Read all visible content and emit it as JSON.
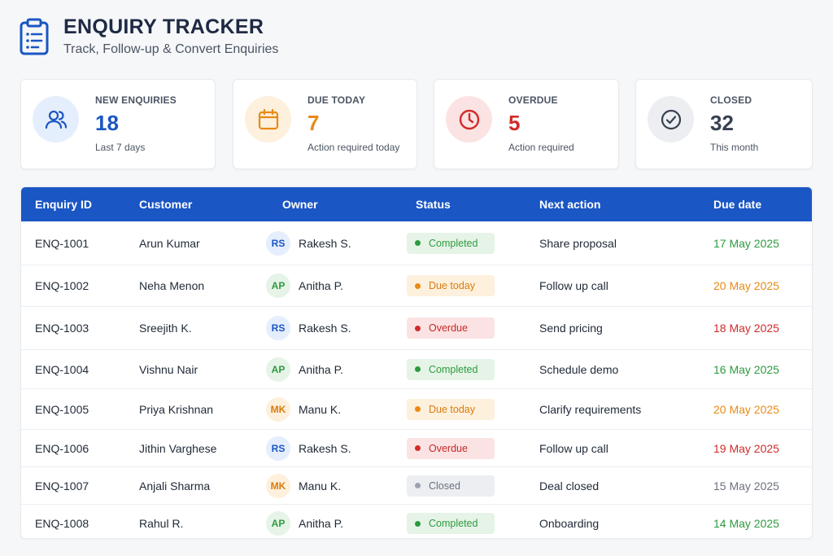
{
  "header": {
    "title": "ENQUIRY TRACKER",
    "subtitle": "Track, Follow-up & Convert Enquiries",
    "icon": "clipboard-icon"
  },
  "cards": [
    {
      "label": "NEW ENQUIRIES",
      "value": "18",
      "note": "Last 7 days",
      "icon": "users-icon",
      "color": "#1a56c4",
      "bg": "#e5eefc"
    },
    {
      "label": "DUE TODAY",
      "value": "7",
      "note": "Action required today",
      "icon": "calendar-icon",
      "color": "#e98a15",
      "bg": "#fdf0dd"
    },
    {
      "label": "OVERDUE",
      "value": "5",
      "note": "Action required",
      "icon": "clock-icon",
      "color": "#d12b2b",
      "bg": "#fbe3e3"
    },
    {
      "label": "CLOSED",
      "value": "32",
      "note": "This month",
      "icon": "check-circle-icon",
      "color": "#374151",
      "bg": "#eceef1"
    }
  ],
  "table": {
    "columns": [
      "Enquiry ID",
      "Customer",
      "Owner",
      "Status",
      "Next action",
      "Due date"
    ],
    "rows": [
      {
        "id": "ENQ-1001",
        "customer": "Arun Kumar",
        "owner_initials": "RS",
        "owner": "Rakesh S.",
        "status": "Completed",
        "status_type": "completed",
        "next_action": "Share proposal",
        "due": "17 May 2025"
      },
      {
        "id": "ENQ-1002",
        "customer": "Neha Menon",
        "owner_initials": "AP",
        "owner": "Anitha P.",
        "status": "Due today",
        "status_type": "due",
        "next_action": "Follow up call",
        "due": "20 May 2025"
      },
      {
        "id": "ENQ-1003",
        "customer": "Sreejith K.",
        "owner_initials": "RS",
        "owner": "Rakesh S.",
        "status": "Overdue",
        "status_type": "overdue",
        "next_action": "Send pricing",
        "due": "18 May 2025"
      },
      {
        "id": "ENQ-1004",
        "customer": "Vishnu Nair",
        "owner_initials": "AP",
        "owner": "Anitha P.",
        "status": "Completed",
        "status_type": "completed",
        "next_action": "Schedule demo",
        "due": "16 May 2025"
      },
      {
        "id": "ENQ-1005",
        "customer": "Priya Krishnan",
        "owner_initials": "MK",
        "owner": "Manu K.",
        "status": "Due today",
        "status_type": "due",
        "next_action": "Clarify requirements",
        "due": "20 May 2025"
      },
      {
        "id": "ENQ-1006",
        "customer": "Jithin Varghese",
        "owner_initials": "RS",
        "owner": "Rakesh S.",
        "status": "Overdue",
        "status_type": "overdue",
        "next_action": "Follow up call",
        "due": "19 May 2025"
      },
      {
        "id": "ENQ-1007",
        "customer": "Anjali Sharma",
        "owner_initials": "MK",
        "owner": "Manu K.",
        "status": "Closed",
        "status_type": "closed",
        "next_action": "Deal closed",
        "due": "15 May 2025"
      },
      {
        "id": "ENQ-1008",
        "customer": "Rahul R.",
        "owner_initials": "AP",
        "owner": "Anitha P.",
        "status": "Completed",
        "status_type": "completed",
        "next_action": "Onboarding",
        "due": "14 May 2025"
      }
    ]
  },
  "colors": {
    "header_bg": "#1a56c4",
    "completed": "#2e9a3e",
    "due": "#e98a15",
    "overdue": "#d12b2b",
    "closed": "#6b7280"
  }
}
